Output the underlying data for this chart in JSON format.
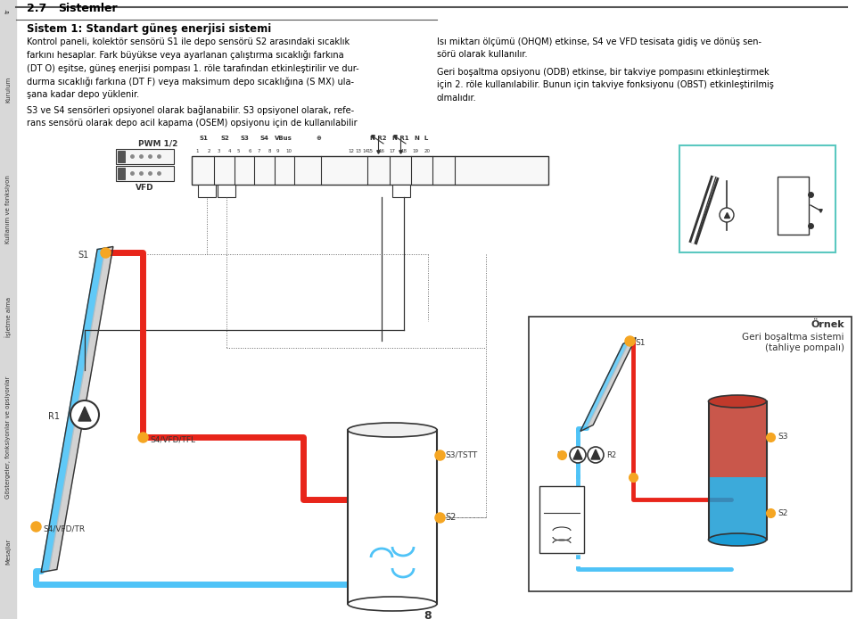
{
  "page_num": "8",
  "section": "2.7",
  "section_title": "Sistemler",
  "system_title": "Sistem 1: Standart güneş enerjisi sistemi",
  "left_col_text1": "Kontrol paneli, kolektör sensörü S1 ile depo sensörü S2 arasındaki sıcaklık\nfarkını hesaplar. Fark büyükse veya ayarlanan çalıştırma sıcaklığı farkına\n(DT O) eşitse, güneş enerjisi pompası 1. röle tarafından etkinleştirilir ve dur-\ndurma sıcaklığı farkına (DT F) veya maksimum depo sıcaklığına (S MX) ula-\nşana kadar depo yüklenir.",
  "left_col_text2": "S3 ve S4 sensörleri opsiyonel olarak bağlanabilir. S3 opsiyonel olarak, refe-\nrans sensörü olarak depo acil kapama (OSEM) opsiyonu için de kullanılabilir",
  "right_col_text1": "Isı miktarı ölçümü (OHQM) etkinse, S4 ve VFD tesisata gidiş ve dönüş sen-\nsörü olarak kullanılır.",
  "right_col_text2": "Geri boşaltma opsiyonu (ODB) etkinse, bir takviye pompasını etkinleştirmek\niçin 2. röle kullanılabilir. Bunun için takviye fonksiyonu (OBST) etkinleştirilmiş\nolmalıdır.",
  "bg_color": "#ffffff",
  "text_color": "#000000",
  "sidebar_color": "#d8d8d8",
  "red_pipe": "#e8251a",
  "blue_pipe": "#4fc3f7",
  "orange_dot": "#f5a623",
  "dark_gray": "#333333",
  "mid_gray": "#666666"
}
